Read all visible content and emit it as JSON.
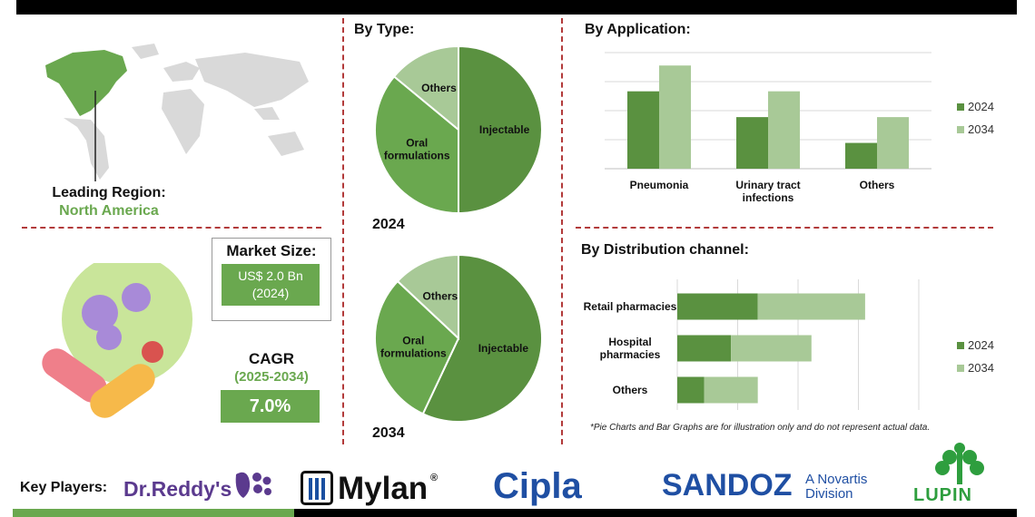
{
  "leading_region": {
    "label": "Leading Region:",
    "value": "North America"
  },
  "market_size": {
    "title": "Market Size:",
    "value_line1": "US$ 2.0 Bn",
    "value_line2": "(2024)"
  },
  "cagr": {
    "title": "CAGR",
    "period": "(2025-2034)",
    "value": "7.0%"
  },
  "sections": {
    "by_type": "By Type:",
    "by_application": "By Application:",
    "by_distribution": "By Distribution channel:"
  },
  "note": "*Pie Charts and Bar Graphs are for illustration only and do not represent actual data.",
  "key_players": {
    "label": "Key Players:",
    "logos": [
      "Dr.Reddy's",
      "Mylan",
      "Cipla",
      "SANDOZ",
      "A Novartis",
      "Division",
      "LUPIN"
    ]
  },
  "colors": {
    "dark_green": "#5a9140",
    "mid_green": "#6aa84f",
    "light_green": "#a8c997",
    "divider": "#b23a3a"
  },
  "chart_data": [
    {
      "type": "pie",
      "year": "2024",
      "slices": [
        {
          "label": "Injectable",
          "value": 50,
          "color": "#5a9140"
        },
        {
          "label": "Oral formulations",
          "value": 36,
          "color": "#6aa84f"
        },
        {
          "label": "Others",
          "value": 14,
          "color": "#a8c997"
        }
      ]
    },
    {
      "type": "pie",
      "year": "2034",
      "slices": [
        {
          "label": "Injectable",
          "value": 57,
          "color": "#5a9140"
        },
        {
          "label": "Oral formulations",
          "value": 30,
          "color": "#6aa84f"
        },
        {
          "label": "Others",
          "value": 13,
          "color": "#a8c997"
        }
      ]
    },
    {
      "type": "bar",
      "categories": [
        "Pneumonia",
        "Urinary tract infections",
        "Others"
      ],
      "series": [
        {
          "name": "2024",
          "values": [
            3,
            2,
            1
          ],
          "color": "#5a9140"
        },
        {
          "name": "2034",
          "values": [
            4,
            3,
            2
          ],
          "color": "#a8c997"
        }
      ],
      "ylim": [
        0,
        4.5
      ],
      "grid": true,
      "legend": "right"
    },
    {
      "type": "bar",
      "orientation": "horizontal",
      "stacked": true,
      "categories": [
        "Retail pharmacies",
        "Hospital pharmacies",
        "Others"
      ],
      "series": [
        {
          "name": "2024",
          "values": [
            1.5,
            1.0,
            0.5
          ],
          "color": "#5a9140"
        },
        {
          "name": "2034",
          "values": [
            2.0,
            1.5,
            1.0
          ],
          "color": "#a8c997"
        }
      ],
      "xlim": [
        0,
        4.5
      ],
      "grid": true,
      "legend": "right"
    }
  ]
}
